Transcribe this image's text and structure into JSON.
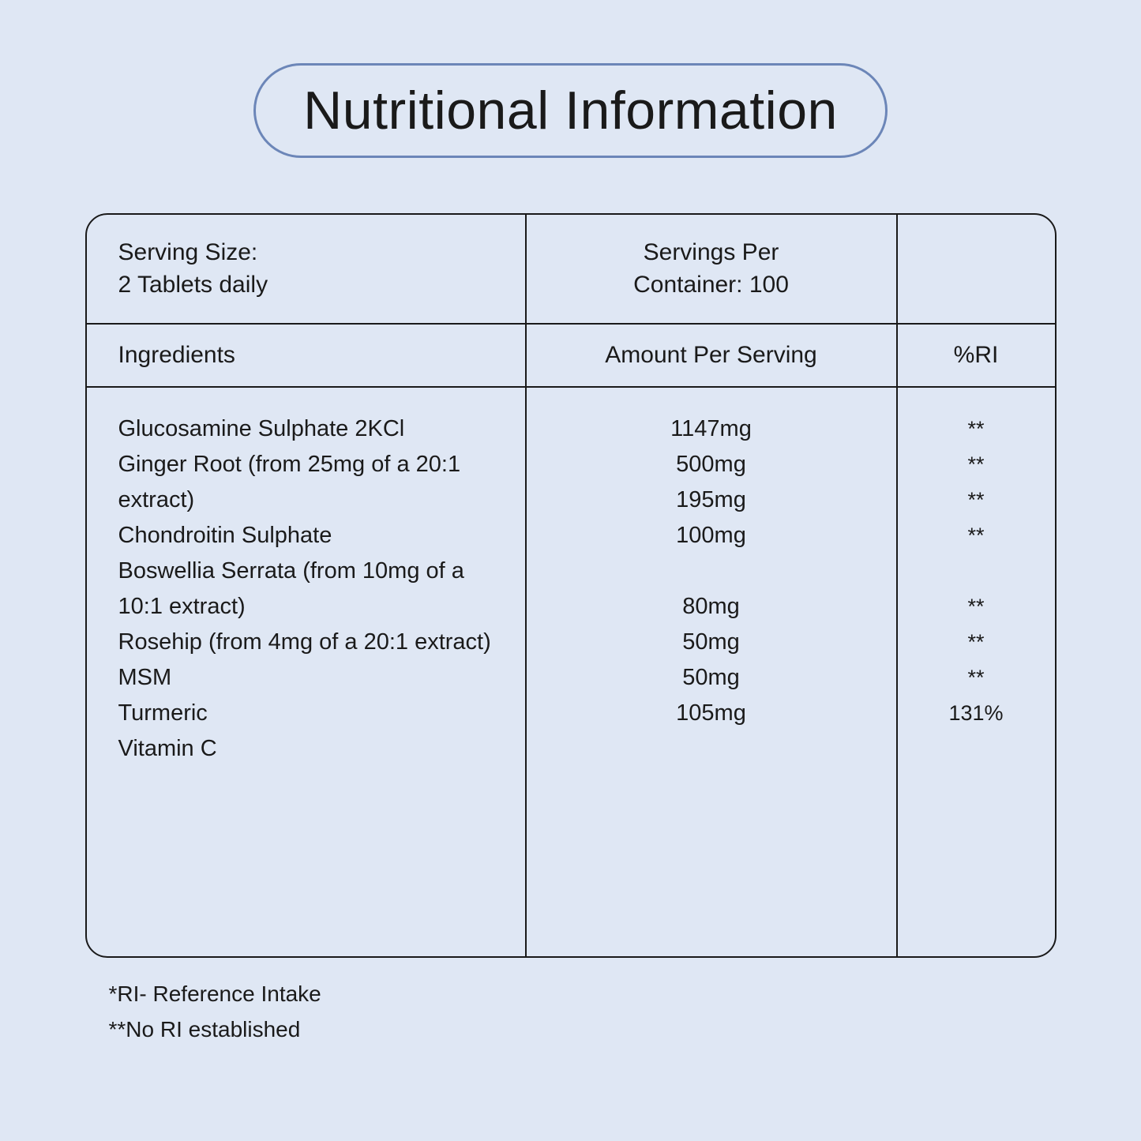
{
  "colors": {
    "background": "#dfe7f4",
    "border_accent": "#6c86b8",
    "border_dark": "#1a1a1a",
    "text": "#1a1a1a"
  },
  "title": "Nutritional Information",
  "serving_size_label": "Serving Size:",
  "serving_size_value": "2 Tablets daily",
  "servings_per_label": "Servings Per",
  "servings_per_value": "Container:  100",
  "headers": {
    "ingredients": "Ingredients",
    "amount": "Amount Per Serving",
    "ri": "%RI"
  },
  "rows": [
    {
      "name": "Glucosamine Sulphate 2KCl",
      "amount": "1147mg",
      "ri": "**",
      "lines": 1
    },
    {
      "name": "Ginger Root (from 25mg of a 20:1 extract)",
      "amount": "500mg",
      "ri": "**",
      "lines": 1
    },
    {
      "name": "Chondroitin Sulphate",
      "amount": "195mg",
      "ri": "**",
      "lines": 1
    },
    {
      "name": "Boswellia Serrata (from 10mg of a 10:1 extract)",
      "amount": "100mg",
      "ri": "**",
      "lines": 2
    },
    {
      "name": "Rosehip (from 4mg of a 20:1 extract)",
      "amount": "80mg",
      "ri": "**",
      "lines": 1
    },
    {
      "name": "MSM",
      "amount": "50mg",
      "ri": "**",
      "lines": 1
    },
    {
      "name": "Turmeric",
      "amount": "50mg",
      "ri": "**",
      "lines": 1
    },
    {
      "name": "Vitamin C",
      "amount": "105mg",
      "ri": "131%",
      "lines": 1
    }
  ],
  "footnote1": "*RI- Reference Intake",
  "footnote2": "**No RI established"
}
